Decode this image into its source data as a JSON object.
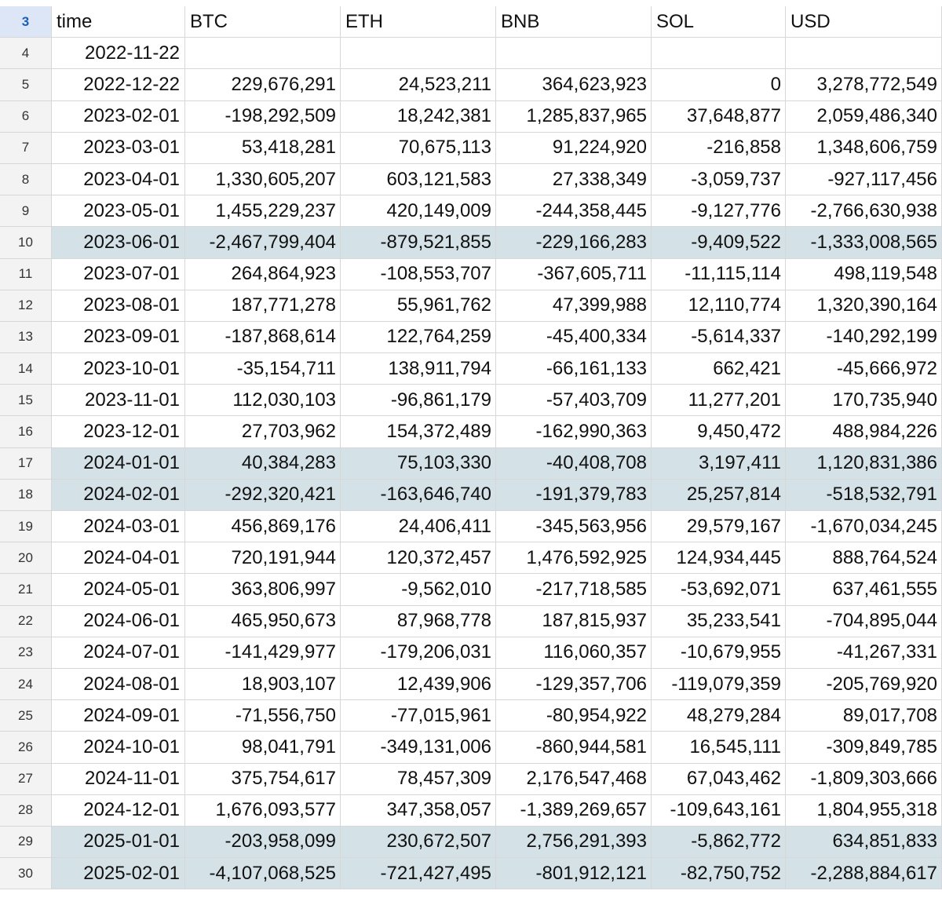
{
  "header": {
    "row_number": "3",
    "columns": [
      "time",
      "BTC",
      "ETH",
      "BNB",
      "SOL",
      "USD"
    ]
  },
  "rows": [
    {
      "n": "4",
      "time": "2022-11-22",
      "btc": "",
      "eth": "",
      "bnb": "",
      "sol": "",
      "usd": "",
      "hl": false
    },
    {
      "n": "5",
      "time": "2022-12-22",
      "btc": "229,676,291",
      "eth": "24,523,211",
      "bnb": "364,623,923",
      "sol": "0",
      "usd": "3,278,772,549",
      "hl": false
    },
    {
      "n": "6",
      "time": "2023-02-01",
      "btc": "-198,292,509",
      "eth": "18,242,381",
      "bnb": "1,285,837,965",
      "sol": "37,648,877",
      "usd": "2,059,486,340",
      "hl": false
    },
    {
      "n": "7",
      "time": "2023-03-01",
      "btc": "53,418,281",
      "eth": "70,675,113",
      "bnb": "91,224,920",
      "sol": "-216,858",
      "usd": "1,348,606,759",
      "hl": false
    },
    {
      "n": "8",
      "time": "2023-04-01",
      "btc": "1,330,605,207",
      "eth": "603,121,583",
      "bnb": "27,338,349",
      "sol": "-3,059,737",
      "usd": "-927,117,456",
      "hl": false
    },
    {
      "n": "9",
      "time": "2023-05-01",
      "btc": "1,455,229,237",
      "eth": "420,149,009",
      "bnb": "-244,358,445",
      "sol": "-9,127,776",
      "usd": "-2,766,630,938",
      "hl": false
    },
    {
      "n": "10",
      "time": "2023-06-01",
      "btc": "-2,467,799,404",
      "eth": "-879,521,855",
      "bnb": "-229,166,283",
      "sol": "-9,409,522",
      "usd": "-1,333,008,565",
      "hl": true
    },
    {
      "n": "11",
      "time": "2023-07-01",
      "btc": "264,864,923",
      "eth": "-108,553,707",
      "bnb": "-367,605,711",
      "sol": "-11,115,114",
      "usd": "498,119,548",
      "hl": false
    },
    {
      "n": "12",
      "time": "2023-08-01",
      "btc": "187,771,278",
      "eth": "55,961,762",
      "bnb": "47,399,988",
      "sol": "12,110,774",
      "usd": "1,320,390,164",
      "hl": false
    },
    {
      "n": "13",
      "time": "2023-09-01",
      "btc": "-187,868,614",
      "eth": "122,764,259",
      "bnb": "-45,400,334",
      "sol": "-5,614,337",
      "usd": "-140,292,199",
      "hl": false
    },
    {
      "n": "14",
      "time": "2023-10-01",
      "btc": "-35,154,711",
      "eth": "138,911,794",
      "bnb": "-66,161,133",
      "sol": "662,421",
      "usd": "-45,666,972",
      "hl": false
    },
    {
      "n": "15",
      "time": "2023-11-01",
      "btc": "112,030,103",
      "eth": "-96,861,179",
      "bnb": "-57,403,709",
      "sol": "11,277,201",
      "usd": "170,735,940",
      "hl": false
    },
    {
      "n": "16",
      "time": "2023-12-01",
      "btc": "27,703,962",
      "eth": "154,372,489",
      "bnb": "-162,990,363",
      "sol": "9,450,472",
      "usd": "488,984,226",
      "hl": false
    },
    {
      "n": "17",
      "time": "2024-01-01",
      "btc": "40,384,283",
      "eth": "75,103,330",
      "bnb": "-40,408,708",
      "sol": "3,197,411",
      "usd": "1,120,831,386",
      "hl": true
    },
    {
      "n": "18",
      "time": "2024-02-01",
      "btc": "-292,320,421",
      "eth": "-163,646,740",
      "bnb": "-191,379,783",
      "sol": "25,257,814",
      "usd": "-518,532,791",
      "hl": true
    },
    {
      "n": "19",
      "time": "2024-03-01",
      "btc": "456,869,176",
      "eth": "24,406,411",
      "bnb": "-345,563,956",
      "sol": "29,579,167",
      "usd": "-1,670,034,245",
      "hl": false
    },
    {
      "n": "20",
      "time": "2024-04-01",
      "btc": "720,191,944",
      "eth": "120,372,457",
      "bnb": "1,476,592,925",
      "sol": "124,934,445",
      "usd": "888,764,524",
      "hl": false
    },
    {
      "n": "21",
      "time": "2024-05-01",
      "btc": "363,806,997",
      "eth": "-9,562,010",
      "bnb": "-217,718,585",
      "sol": "-53,692,071",
      "usd": "637,461,555",
      "hl": false
    },
    {
      "n": "22",
      "time": "2024-06-01",
      "btc": "465,950,673",
      "eth": "87,968,778",
      "bnb": "187,815,937",
      "sol": "35,233,541",
      "usd": "-704,895,044",
      "hl": false
    },
    {
      "n": "23",
      "time": "2024-07-01",
      "btc": "-141,429,977",
      "eth": "-179,206,031",
      "bnb": "116,060,357",
      "sol": "-10,679,955",
      "usd": "-41,267,331",
      "hl": false
    },
    {
      "n": "24",
      "time": "2024-08-01",
      "btc": "18,903,107",
      "eth": "12,439,906",
      "bnb": "-129,357,706",
      "sol": "-119,079,359",
      "usd": "-205,769,920",
      "hl": false
    },
    {
      "n": "25",
      "time": "2024-09-01",
      "btc": "-71,556,750",
      "eth": "-77,015,961",
      "bnb": "-80,954,922",
      "sol": "48,279,284",
      "usd": "89,017,708",
      "hl": false
    },
    {
      "n": "26",
      "time": "2024-10-01",
      "btc": "98,041,791",
      "eth": "-349,131,006",
      "bnb": "-860,944,581",
      "sol": "16,545,111",
      "usd": "-309,849,785",
      "hl": false
    },
    {
      "n": "27",
      "time": "2024-11-01",
      "btc": "375,754,617",
      "eth": "78,457,309",
      "bnb": "2,176,547,468",
      "sol": "67,043,462",
      "usd": "-1,809,303,666",
      "hl": false
    },
    {
      "n": "28",
      "time": "2024-12-01",
      "btc": "1,676,093,577",
      "eth": "347,358,057",
      "bnb": "-1,389,269,657",
      "sol": "-109,643,161",
      "usd": "1,804,955,318",
      "hl": false
    },
    {
      "n": "29",
      "time": "2025-01-01",
      "btc": "-203,958,099",
      "eth": "230,672,507",
      "bnb": "2,756,291,393",
      "sol": "-5,862,772",
      "usd": "634,851,833",
      "hl": true
    },
    {
      "n": "30",
      "time": "2025-02-01",
      "btc": "-4,107,068,525",
      "eth": "-721,427,495",
      "bnb": "-801,912,121",
      "sol": "-82,750,752",
      "usd": "-2,288,884,617",
      "hl": true
    }
  ]
}
